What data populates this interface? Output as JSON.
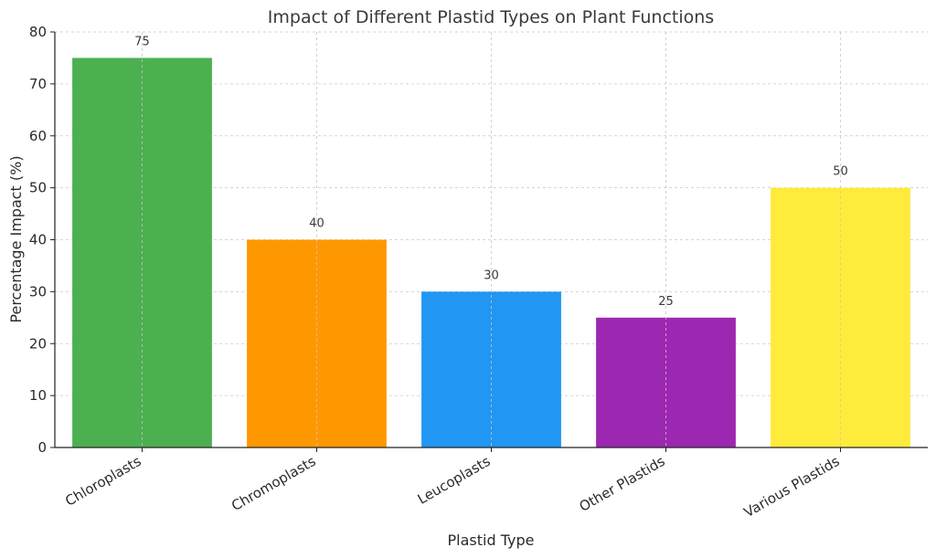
{
  "chart_data": {
    "type": "bar",
    "title": "Impact of Different Plastid Types on Plant Functions",
    "xlabel": "Plastid Type",
    "ylabel": "Percentage Impact (%)",
    "categories": [
      "Chloroplasts",
      "Chromoplasts",
      "Leucoplasts",
      "Other Plastids",
      "Various Plastids"
    ],
    "values": [
      75,
      40,
      30,
      25,
      50
    ],
    "value_labels": [
      "75",
      "40",
      "30",
      "25",
      "50"
    ],
    "colors": [
      "#4caf50",
      "#ff9800",
      "#2196f3",
      "#9c27b0",
      "#ffeb3b"
    ],
    "ylim": [
      0,
      80
    ],
    "yticks": [
      0,
      10,
      20,
      30,
      40,
      50,
      60,
      70,
      80
    ],
    "ytick_labels": [
      "0",
      "10",
      "20",
      "30",
      "40",
      "50",
      "60",
      "70",
      "80"
    ],
    "grid": true,
    "legend": "none"
  }
}
